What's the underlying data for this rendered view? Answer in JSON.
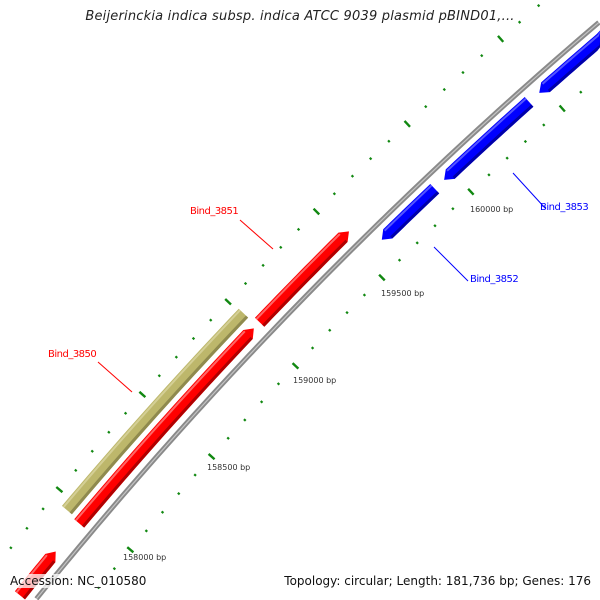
{
  "map": {
    "title": "Beijerinckia indica subsp. indica ATCC 9039 plasmid pBIND01,...",
    "accession": "Accession: NC_010580",
    "summary": "Topology: circular; Length: 181,736 bp; Genes: 176"
  },
  "colors": {
    "forward_gene": "#ff0000",
    "reverse_gene": "#0000ff",
    "other_feature": "#bdb76b",
    "backbone": "#8a8a8a",
    "ticks": "#118811",
    "tick_label": "#333333"
  },
  "genes": [
    {
      "name": "Bind_3850",
      "strand": "forward",
      "color": "#ff0000"
    },
    {
      "name": "Bind_3851",
      "strand": "forward",
      "color": "#ff0000"
    },
    {
      "name": "Bind_3852",
      "strand": "reverse",
      "color": "#0000ff"
    },
    {
      "name": "Bind_3853",
      "strand": "reverse",
      "color": "#0000ff"
    }
  ],
  "tick_labels": [
    "158000 bp",
    "158500 bp",
    "159000 bp",
    "159500 bp",
    "160000 bp"
  ]
}
